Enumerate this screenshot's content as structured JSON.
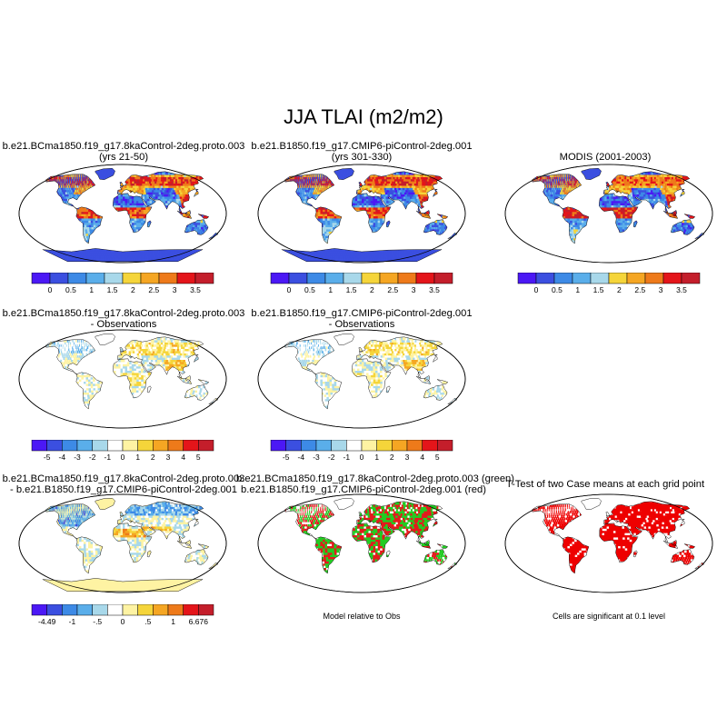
{
  "title": "JJA TLAI (m2/m2)",
  "colors": {
    "ocean_fill": "#ffffff",
    "outline": "#000000"
  },
  "panels": [
    {
      "id": "p1",
      "title1": "b.e21.BCma1850.f19_g17.8kaControl-2deg.proto.003",
      "title2": "(yrs 21-50)",
      "kind": "abs",
      "seed": 11
    },
    {
      "id": "p2",
      "title1": "b.e21.B1850.f19_g17.CMIP6-piControl-2deg.001",
      "title2": "(yrs 301-330)",
      "kind": "abs",
      "seed": 23
    },
    {
      "id": "p3",
      "title1": "MODIS (2001-2003)",
      "title2": "",
      "kind": "obs",
      "seed": 37
    },
    {
      "id": "p4",
      "title1": "b.e21.BCma1850.f19_g17.8kaControl-2deg.proto.003",
      "title2": "- Observations",
      "kind": "diff",
      "seed": 41
    },
    {
      "id": "p5",
      "title1": "b.e21.B1850.f19_g17.CMIP6-piControl-2deg.001",
      "title2": "- Observations",
      "kind": "diff",
      "seed": 53
    },
    {
      "id": "p7",
      "title1": "b.e21.BCma1850.f19_g17.8kaControl-2deg.proto.003",
      "title2": "- b.e21.B1850.f19_g17.CMIP6-piControl-2deg.001",
      "kind": "mdiff",
      "seed": 67
    },
    {
      "id": "p8",
      "title1": "b.e21.BCma1850.f19_g17.8kaControl-2deg.proto.003 (green)",
      "title2": "b.e21.B1850.f19_g17.CMIP6-piControl-2deg.001 (red)",
      "kind": "rel",
      "seed": 71
    },
    {
      "id": "p9",
      "title1": "T-Test of two Case means at each grid point",
      "title2": "",
      "kind": "ttest",
      "seed": 83
    }
  ],
  "colorbars": {
    "abs": {
      "colors": [
        "#4b18f5",
        "#3b4fe0",
        "#3d8ae6",
        "#5aaeea",
        "#a8d8ea",
        "#f5d53a",
        "#f5a623",
        "#ee7a1a",
        "#e4151a",
        "#c41e2b"
      ],
      "labels": [
        "0",
        "0.5",
        "1",
        "1.5",
        "2",
        "2.5",
        "3",
        "3.5"
      ]
    },
    "diff": {
      "colors": [
        "#4b18f5",
        "#3b4fe0",
        "#3d8ae6",
        "#5aaeea",
        "#a8d8ea",
        "#ffffff",
        "#fef3a3",
        "#f5d53a",
        "#f5a623",
        "#ee7a1a",
        "#e4151a",
        "#c41e2b"
      ],
      "labels": [
        "-5",
        "-4",
        "-3",
        "-2",
        "-1",
        "0",
        "1",
        "2",
        "3",
        "4",
        "5"
      ]
    },
    "mdiff": {
      "colors": [
        "#4b18f5",
        "#3b4fe0",
        "#3d8ae6",
        "#5aaeea",
        "#a8d8ea",
        "#ffffff",
        "#fef3a3",
        "#f5d53a",
        "#f5a623",
        "#ee7a1a",
        "#e4151a",
        "#c41e2b"
      ],
      "labels": [
        "-4.49",
        "-1",
        "-.5",
        "0",
        ".5",
        "1",
        "6.676"
      ]
    }
  },
  "notes": {
    "relative": "Model relative to Obs",
    "significance": "Cells are significant at 0.1 level"
  }
}
